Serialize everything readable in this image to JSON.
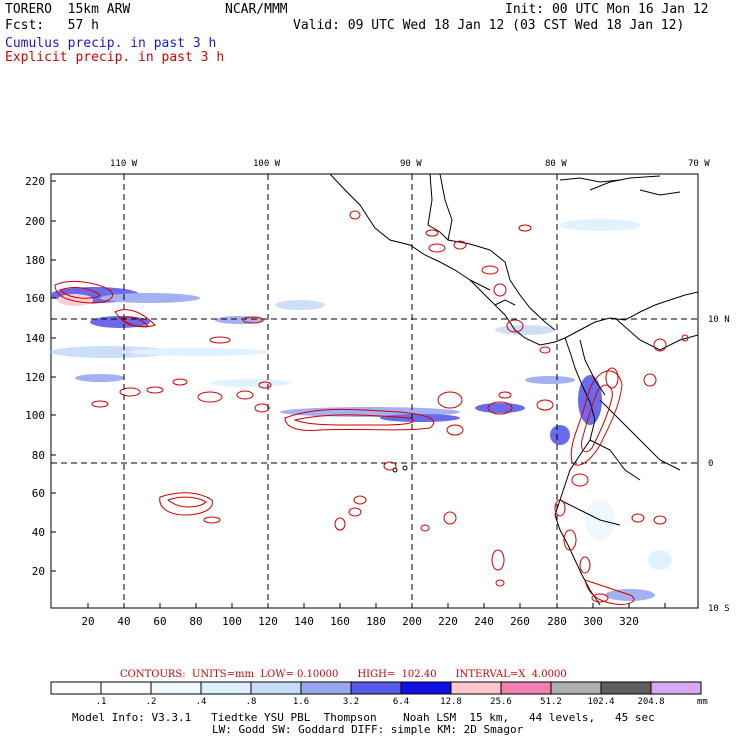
{
  "header": {
    "model_name": "TORERO  15km ARW",
    "org": "NCAR/MMM",
    "init": "Init: 00 UTC Mon 16 Jan 12",
    "fcst": "Fcst:   57 h",
    "valid": "Valid: 09 UTC Wed 18 Jan 12 (03 CST Wed 18 Jan 12)",
    "line_cumulus": "Cumulus precip. in past 3 h",
    "line_explicit": "Explicit precip. in past 3 h"
  },
  "map": {
    "top_lon_labels": [
      "110 W",
      "100 W",
      "90 W",
      "80 W",
      "70 W"
    ],
    "right_lat_labels": [
      "10 N",
      "0",
      "10 S"
    ],
    "y_ticks": [
      "220",
      "200",
      "180",
      "160",
      "140",
      "120",
      "100",
      "80",
      "60",
      "40",
      "20"
    ],
    "x_ticks": [
      "20",
      "40",
      "60",
      "80",
      "100",
      "120",
      "140",
      "160",
      "180",
      "200",
      "220",
      "240",
      "260",
      "280",
      "300",
      "320"
    ],
    "colors": {
      "coast": "#000000",
      "contour": "#d00000",
      "grid": "#000000"
    }
  },
  "contour_info": {
    "label": "CONTOURS:  UNITS=mm  LOW= 0.10000      HIGH=  102.40      INTERVAL=X  4.0000"
  },
  "colorbar": {
    "labels": [
      ".1",
      ".2",
      ".4",
      ".8",
      "1.6",
      "3.2",
      "6.4",
      "12.8",
      "25.6",
      "51.2",
      "102.4",
      "204.8"
    ],
    "unit": "mm",
    "colors": [
      "#ffffff",
      "#ffffff",
      "#eef8ff",
      "#ddf0ff",
      "#c8dcf8",
      "#9aa8f0",
      "#5a5ae8",
      "#1010e0",
      "#ffc8d0",
      "#f080b0",
      "#b0b0b0",
      "#606060",
      "#d8a8f8"
    ]
  },
  "footer": {
    "line1": "Model Info: V3.3.1   Tiedtke YSU PBL  Thompson    Noah LSM  15 km,   44 levels,   45 sec",
    "line2": "LW: Godd SW: Goddard DIFF: simple KM: 2D Smagor"
  }
}
